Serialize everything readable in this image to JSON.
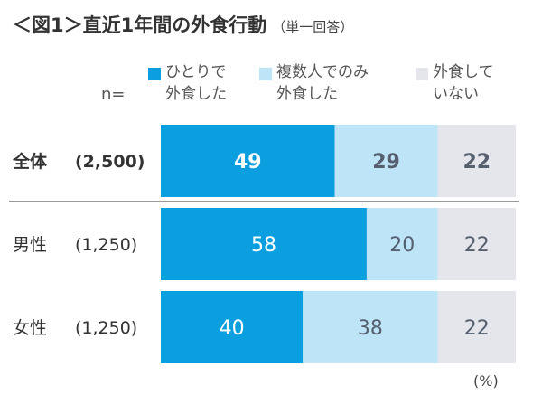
{
  "title": "＜図1＞直近1年間の外食行動",
  "subtitle": "（単一回答）",
  "n_label": "n=",
  "unit_label": "(%)",
  "colors": {
    "alone": "#0b9fe0",
    "group": "#bde4f7",
    "none": "#e4e6eb",
    "divider": "#999999"
  },
  "chart_data": {
    "type": "bar",
    "orientation": "horizontal",
    "stacked": true,
    "title": "＜図1＞直近1年間の外食行動",
    "xlim": [
      0,
      100
    ],
    "categories": [
      "全体 (2,500)",
      "男性 (1,250)",
      "女性 (1,250)"
    ],
    "category_labels": [
      {
        "name": "全体",
        "n": "(2,500)",
        "bold": true
      },
      {
        "name": "男性",
        "n": "(1,250)",
        "bold": false
      },
      {
        "name": "女性",
        "n": "(1,250)",
        "bold": false
      }
    ],
    "series": [
      {
        "key": "alone",
        "name": "ひとりで外食した",
        "legend_lines": [
          "ひとりで",
          "外食した"
        ],
        "values": [
          49,
          58,
          40
        ],
        "label_color": "#ffffff"
      },
      {
        "key": "group",
        "name": "複数人でのみ外食した",
        "legend_lines": [
          "複数人でのみ",
          "外食した"
        ],
        "values": [
          29,
          20,
          38
        ],
        "label_color": "#555f6e"
      },
      {
        "key": "none",
        "name": "外食していない",
        "legend_lines": [
          "外食して",
          "いない"
        ],
        "values": [
          22,
          22,
          22
        ],
        "label_color": "#555f6e"
      }
    ]
  }
}
